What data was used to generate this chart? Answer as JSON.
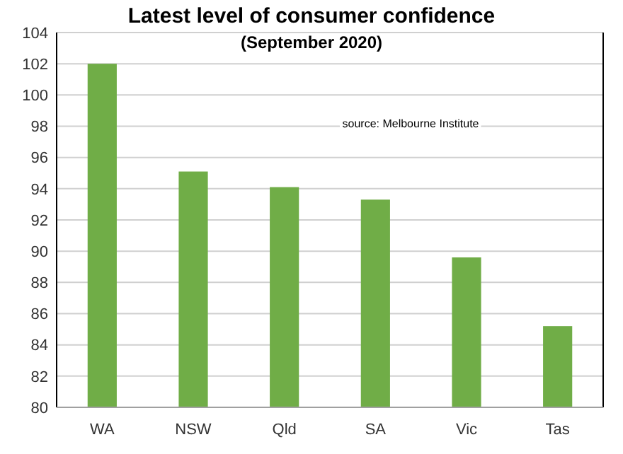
{
  "chart_data": {
    "type": "bar",
    "title": "Latest level of consumer confidence",
    "subtitle": "(September 2020)",
    "categories": [
      "WA",
      "NSW",
      "Qld",
      "SA",
      "Vic",
      "Tas"
    ],
    "values": [
      102.0,
      95.1,
      94.1,
      93.3,
      89.6,
      85.2
    ],
    "color": "#70ad47",
    "ylim": [
      80,
      104
    ],
    "yticks": [
      80,
      82,
      84,
      86,
      88,
      90,
      92,
      94,
      96,
      98,
      100,
      102,
      104
    ],
    "grid": "y",
    "annotations": [
      "source:  Melbourne Institute"
    ]
  }
}
